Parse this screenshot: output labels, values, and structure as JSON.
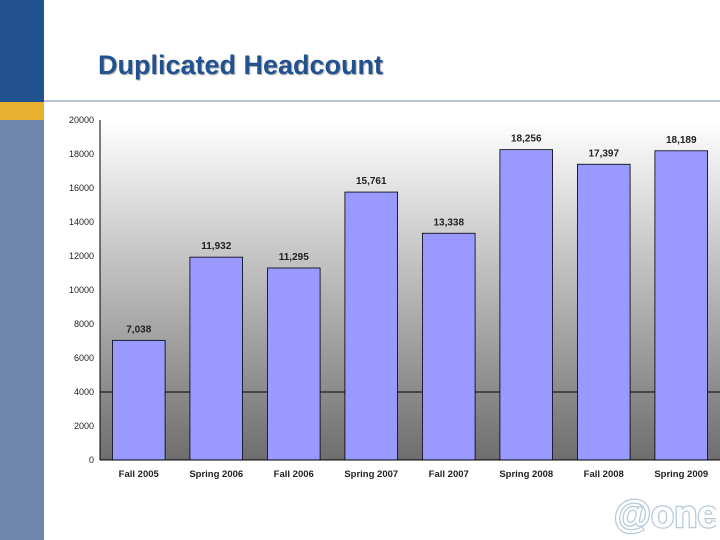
{
  "slide": {
    "title": "Duplicated Headcount",
    "logo_text": "@one"
  },
  "colors": {
    "sidebar_blue": "#21528f",
    "sidebar_accent": "#e8b230",
    "sidebar_grey": "#6e86aa",
    "title_color": "#21528f",
    "rule_color": "#b9c3d0",
    "bar_fill": "#9999ff",
    "bar_stroke": "#000000",
    "plot_top": "#ffffff",
    "plot_bottom": "#6e6e6e",
    "logo_color": "#b5c9da"
  },
  "chart_data": {
    "type": "bar",
    "title": "",
    "xlabel": "",
    "ylabel": "",
    "categories": [
      "Fall 2005",
      "Spring 2006",
      "Fall 2006",
      "Spring 2007",
      "Fall 2007",
      "Spring 2008",
      "Fall 2008",
      "Spring 2009"
    ],
    "values": [
      7038,
      11932,
      11295,
      15761,
      13338,
      18256,
      17397,
      18189
    ],
    "data_labels": [
      "7,038",
      "11,932",
      "11,295",
      "15,761",
      "13,338",
      "18,256",
      "17,397",
      "18,189"
    ],
    "ylim": [
      0,
      20000
    ],
    "yticks": [
      0,
      2000,
      4000,
      6000,
      8000,
      10000,
      12000,
      14000,
      16000,
      18000,
      20000
    ],
    "ytick_labels": [
      "0",
      "2000",
      "4000",
      "6000",
      "8000",
      "10000",
      "12000",
      "14000",
      "16000",
      "18000",
      "20000"
    ],
    "reference_line": 4000,
    "grid": false,
    "legend": "none"
  }
}
